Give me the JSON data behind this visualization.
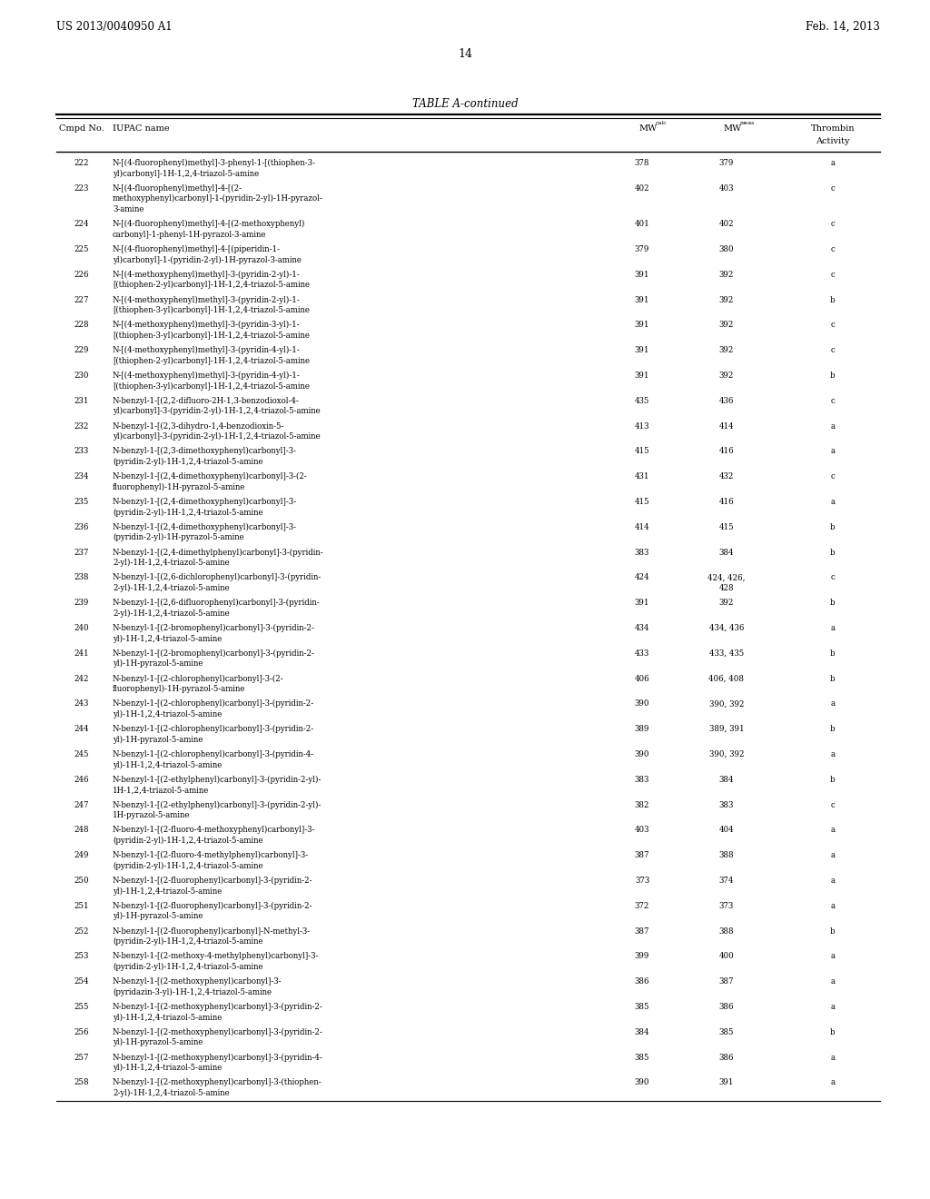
{
  "header_left": "US 2013/0040950 A1",
  "header_right": "Feb. 14, 2013",
  "page_number": "14",
  "table_title": "TABLE A-continued",
  "rows": [
    [
      "222",
      "N-[(4-fluorophenyl)methyl]-3-phenyl-1-[(thiophen-3-\nyl)carbonyl]-1H-1,2,4-triazol-5-amine",
      "378",
      "379",
      "a"
    ],
    [
      "223",
      "N-[(4-fluorophenyl)methyl]-4-[(2-\nmethoxyphenyl)carbonyl]-1-(pyridin-2-yl)-1H-pyrazol-\n3-amine",
      "402",
      "403",
      "c"
    ],
    [
      "224",
      "N-[(4-fluorophenyl)methyl]-4-[(2-methoxyphenyl)\ncarbonyl]-1-phenyl-1H-pyrazol-3-amine",
      "401",
      "402",
      "c"
    ],
    [
      "225",
      "N-[(4-fluorophenyl)methyl]-4-[(piperidin-1-\nyl)carbonyl]-1-(pyridin-2-yl)-1H-pyrazol-3-amine",
      "379",
      "380",
      "c"
    ],
    [
      "226",
      "N-[(4-methoxyphenyl)methyl]-3-(pyridin-2-yl)-1-\n[(thiophen-2-yl)carbonyl]-1H-1,2,4-triazol-5-amine",
      "391",
      "392",
      "c"
    ],
    [
      "227",
      "N-[(4-methoxyphenyl)methyl]-3-(pyridin-2-yl)-1-\n[(thiophen-3-yl)carbonyl]-1H-1,2,4-triazol-5-amine",
      "391",
      "392",
      "b"
    ],
    [
      "228",
      "N-[(4-methoxyphenyl)methyl]-3-(pyridin-3-yl)-1-\n[(thiophen-3-yl)carbonyl]-1H-1,2,4-triazol-5-amine",
      "391",
      "392",
      "c"
    ],
    [
      "229",
      "N-[(4-methoxyphenyl)methyl]-3-(pyridin-4-yl)-1-\n[(thiophen-2-yl)carbonyl]-1H-1,2,4-triazol-5-amine",
      "391",
      "392",
      "c"
    ],
    [
      "230",
      "N-[(4-methoxyphenyl)methyl]-3-(pyridin-4-yl)-1-\n[(thiophen-3-yl)carbonyl]-1H-1,2,4-triazol-5-amine",
      "391",
      "392",
      "b"
    ],
    [
      "231",
      "N-benzyl-1-[(2,2-difluoro-2H-1,3-benzodioxol-4-\nyl)carbonyl]-3-(pyridin-2-yl)-1H-1,2,4-triazol-5-amine",
      "435",
      "436",
      "c"
    ],
    [
      "232",
      "N-benzyl-1-[(2,3-dihydro-1,4-benzodioxin-5-\nyl)carbonyl]-3-(pyridin-2-yl)-1H-1,2,4-triazol-5-amine",
      "413",
      "414",
      "a"
    ],
    [
      "233",
      "N-benzyl-1-[(2,3-dimethoxyphenyl)carbonyl]-3-\n(pyridin-2-yl)-1H-1,2,4-triazol-5-amine",
      "415",
      "416",
      "a"
    ],
    [
      "234",
      "N-benzyl-1-[(2,4-dimethoxyphenyl)carbonyl]-3-(2-\nfluorophenyl)-1H-pyrazol-5-amine",
      "431",
      "432",
      "c"
    ],
    [
      "235",
      "N-benzyl-1-[(2,4-dimethoxyphenyl)carbonyl]-3-\n(pyridin-2-yl)-1H-1,2,4-triazol-5-amine",
      "415",
      "416",
      "a"
    ],
    [
      "236",
      "N-benzyl-1-[(2,4-dimethoxyphenyl)carbonyl]-3-\n(pyridin-2-yl)-1H-pyrazol-5-amine",
      "414",
      "415",
      "b"
    ],
    [
      "237",
      "N-benzyl-1-[(2,4-dimethylphenyl)carbonyl]-3-(pyridin-\n2-yl)-1H-1,2,4-triazol-5-amine",
      "383",
      "384",
      "b"
    ],
    [
      "238",
      "N-benzyl-1-[(2,6-dichlorophenyl)carbonyl]-3-(pyridin-\n2-yl)-1H-1,2,4-triazol-5-amine",
      "424",
      "424, 426,\n428",
      "c"
    ],
    [
      "239",
      "N-benzyl-1-[(2,6-difluorophenyl)carbonyl]-3-(pyridin-\n2-yl)-1H-1,2,4-triazol-5-amine",
      "391",
      "392",
      "b"
    ],
    [
      "240",
      "N-benzyl-1-[(2-bromophenyl)carbonyl]-3-(pyridin-2-\nyl)-1H-1,2,4-triazol-5-amine",
      "434",
      "434, 436",
      "a"
    ],
    [
      "241",
      "N-benzyl-1-[(2-bromophenyl)carbonyl]-3-(pyridin-2-\nyl)-1H-pyrazol-5-amine",
      "433",
      "433, 435",
      "b"
    ],
    [
      "242",
      "N-benzyl-1-[(2-chlorophenyl)carbonyl]-3-(2-\nfluorophenyl)-1H-pyrazol-5-amine",
      "406",
      "406, 408",
      "b"
    ],
    [
      "243",
      "N-benzyl-1-[(2-chlorophenyl)carbonyl]-3-(pyridin-2-\nyl)-1H-1,2,4-triazol-5-amine",
      "390",
      "390, 392",
      "a"
    ],
    [
      "244",
      "N-benzyl-1-[(2-chlorophenyl)carbonyl]-3-(pyridin-2-\nyl)-1H-pyrazol-5-amine",
      "389",
      "389, 391",
      "b"
    ],
    [
      "245",
      "N-benzyl-1-[(2-chlorophenyl)carbonyl]-3-(pyridin-4-\nyl)-1H-1,2,4-triazol-5-amine",
      "390",
      "390, 392",
      "a"
    ],
    [
      "246",
      "N-benzyl-1-[(2-ethylphenyl)carbonyl]-3-(pyridin-2-yl)-\n1H-1,2,4-triazol-5-amine",
      "383",
      "384",
      "b"
    ],
    [
      "247",
      "N-benzyl-1-[(2-ethylphenyl)carbonyl]-3-(pyridin-2-yl)-\n1H-pyrazol-5-amine",
      "382",
      "383",
      "c"
    ],
    [
      "248",
      "N-benzyl-1-[(2-fluoro-4-methoxyphenyl)carbonyl]-3-\n(pyridin-2-yl)-1H-1,2,4-triazol-5-amine",
      "403",
      "404",
      "a"
    ],
    [
      "249",
      "N-benzyl-1-[(2-fluoro-4-methylphenyl)carbonyl]-3-\n(pyridin-2-yl)-1H-1,2,4-triazol-5-amine",
      "387",
      "388",
      "a"
    ],
    [
      "250",
      "N-benzyl-1-[(2-fluorophenyl)carbonyl]-3-(pyridin-2-\nyl)-1H-1,2,4-triazol-5-amine",
      "373",
      "374",
      "a"
    ],
    [
      "251",
      "N-benzyl-1-[(2-fluorophenyl)carbonyl]-3-(pyridin-2-\nyl)-1H-pyrazol-5-amine",
      "372",
      "373",
      "a"
    ],
    [
      "252",
      "N-benzyl-1-[(2-fluorophenyl)carbonyl]-N-methyl-3-\n(pyridin-2-yl)-1H-1,2,4-triazol-5-amine",
      "387",
      "388",
      "b"
    ],
    [
      "253",
      "N-benzyl-1-[(2-methoxy-4-methylphenyl)carbonyl]-3-\n(pyridin-2-yl)-1H-1,2,4-triazol-5-amine",
      "399",
      "400",
      "a"
    ],
    [
      "254",
      "N-benzyl-1-[(2-methoxyphenyl)carbonyl]-3-\n(pyridazin-3-yl)-1H-1,2,4-triazol-5-amine",
      "386",
      "387",
      "a"
    ],
    [
      "255",
      "N-benzyl-1-[(2-methoxyphenyl)carbonyl]-3-(pyridin-2-\nyl)-1H-1,2,4-triazol-5-amine",
      "385",
      "386",
      "a"
    ],
    [
      "256",
      "N-benzyl-1-[(2-methoxyphenyl)carbonyl]-3-(pyridin-2-\nyl)-1H-pyrazol-5-amine",
      "384",
      "385",
      "b"
    ],
    [
      "257",
      "N-benzyl-1-[(2-methoxyphenyl)carbonyl]-3-(pyridin-4-\nyl)-1H-1,2,4-triazol-5-amine",
      "385",
      "386",
      "a"
    ],
    [
      "258",
      "N-benzyl-1-[(2-methoxyphenyl)carbonyl]-3-(thiophen-\n2-yl)-1H-1,2,4-triazol-5-amine",
      "390",
      "391",
      "a"
    ]
  ],
  "bg_color": "#ffffff",
  "text_color": "#000000",
  "fig_width": 10.24,
  "fig_height": 13.2,
  "dpi": 100
}
